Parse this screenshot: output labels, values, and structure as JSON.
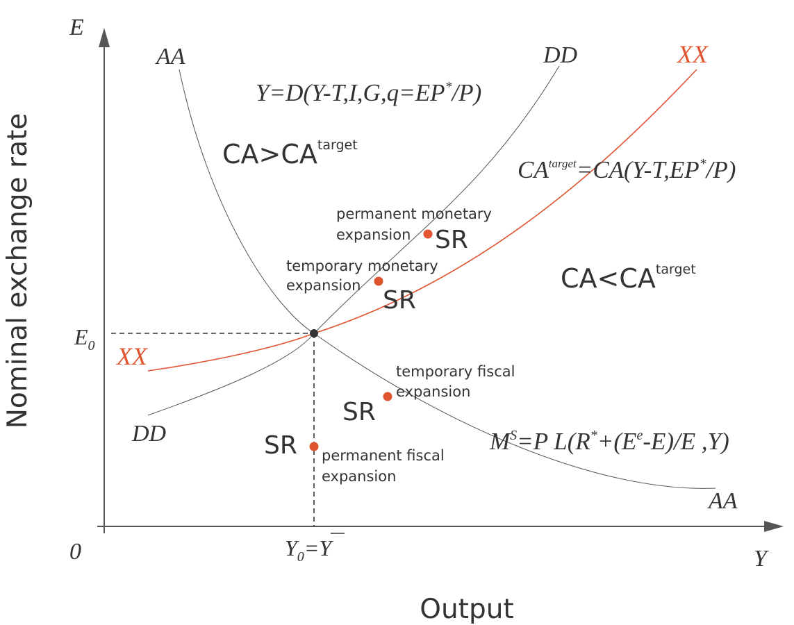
{
  "axes": {
    "y_axis_symbol": "E",
    "x_axis_symbol": "Y",
    "origin_label": "0",
    "y_axis_title": "Nominal exchange rate",
    "x_axis_title": "Output",
    "e0_label": "E",
    "e0_sub": "0",
    "y0_label": "Y",
    "y0_sub": "0",
    "y0_eq": "=",
    "ybar_label": "Y"
  },
  "curves": {
    "aa_top": "AA",
    "aa_bottom": "AA",
    "dd_top": "DD",
    "dd_bottom": "DD",
    "xx_top": "XX",
    "xx_left": "XX"
  },
  "equations": {
    "dd_main": "Y=D(Y-T,I,G,q=EP",
    "dd_sup": "*",
    "dd_end": "/P)",
    "xx_a": "CA",
    "xx_sup1": "target",
    "xx_b": "=CA(Y-T,EP",
    "xx_sup2": "*",
    "xx_c": "/P)",
    "aa_a": "M",
    "aa_sup1": "S",
    "aa_b": "=P L(R",
    "aa_sup2": "*",
    "aa_c": "+(E",
    "aa_sup3": "e",
    "aa_d": "-E)/E ,Y)"
  },
  "regions": {
    "above_main": "CA>CA",
    "above_sup": "target",
    "below_main": "CA<CA",
    "below_sup": "target"
  },
  "points": {
    "perm_monetary_l1": "permanent monetary",
    "perm_monetary_l2": "expansion",
    "perm_monetary_sr": "SR",
    "temp_monetary_l1": "temporary monetary",
    "temp_monetary_l2": "expansion",
    "temp_monetary_sr": "SR",
    "temp_fiscal_l1": "temporary fiscal",
    "temp_fiscal_l2": "expansion",
    "temp_fiscal_sr": "SR",
    "perm_fiscal_l1": "permanent fiscal",
    "perm_fiscal_l2": "expansion",
    "perm_fiscal_sr": "SR"
  },
  "colors": {
    "xx_curve": "#e0532f",
    "points": "#e0532f",
    "curves": "#555555",
    "equilibrium": "#333333"
  }
}
